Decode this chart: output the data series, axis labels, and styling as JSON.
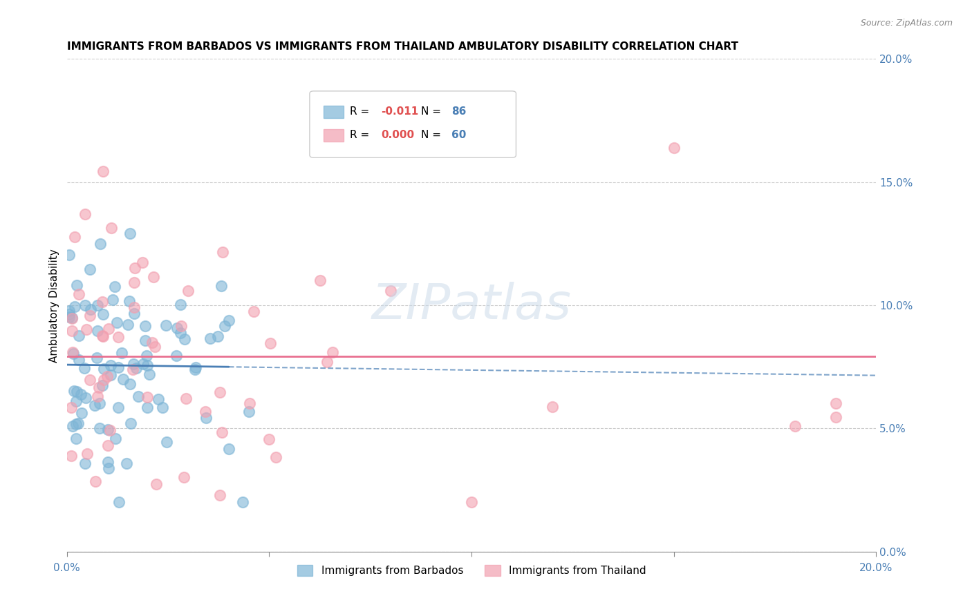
{
  "title": "IMMIGRANTS FROM BARBADOS VS IMMIGRANTS FROM THAILAND AMBULATORY DISABILITY CORRELATION CHART",
  "source": "Source: ZipAtlas.com",
  "ylabel": "Ambulatory Disability",
  "xlim": [
    0.0,
    0.2
  ],
  "ylim": [
    0.0,
    0.2
  ],
  "ytick_values": [
    0.0,
    0.05,
    0.1,
    0.15,
    0.2
  ],
  "barbados_color": "#7eb5d6",
  "thailand_color": "#f2a0b0",
  "trend_barbados_color": "#4a7fb5",
  "trend_thailand_color": "#e87090",
  "watermark": "ZIPatlas",
  "watermark_color": "#c8d8e8",
  "r_barbados": -0.011,
  "n_barbados": 86,
  "r_thailand": 0.0,
  "n_thailand": 60
}
